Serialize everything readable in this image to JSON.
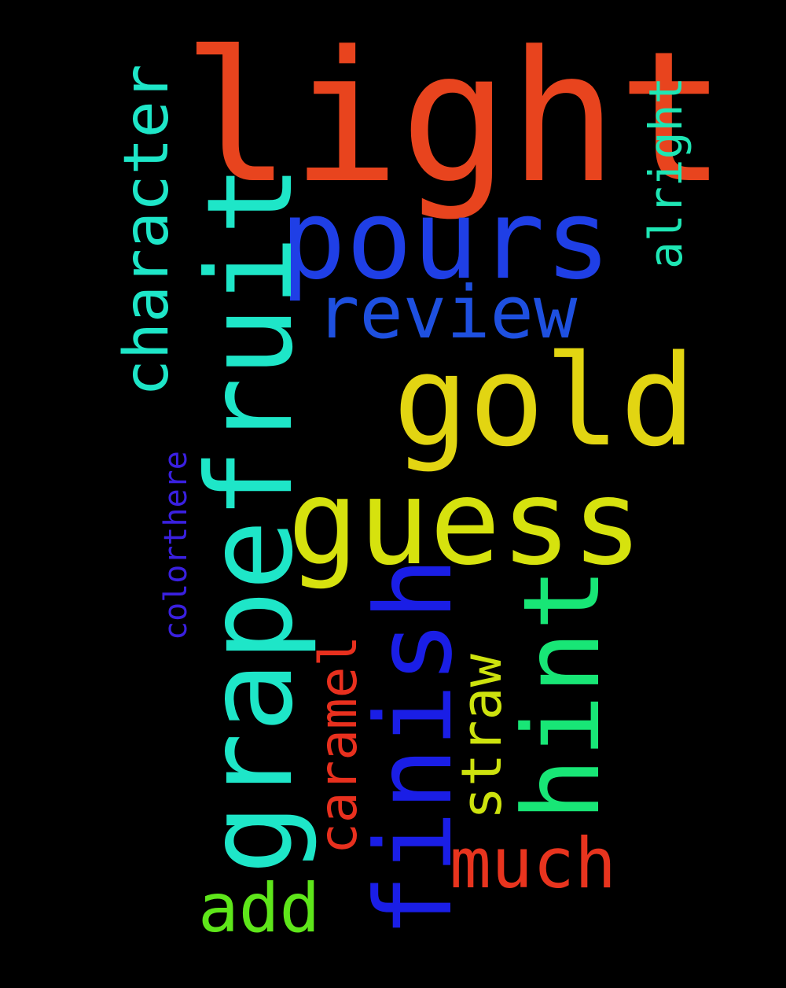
{
  "background": "#000000",
  "words": [
    {
      "text": "light",
      "color": "#e8441e"
    },
    {
      "text": "pours",
      "color": "#1f3fe6"
    },
    {
      "text": "review",
      "color": "#1e50e0"
    },
    {
      "text": "gold",
      "color": "#e2d512"
    },
    {
      "text": "guess",
      "color": "#d6e20e"
    },
    {
      "text": "fruit",
      "color": "#1ee6c8"
    },
    {
      "text": "grapefruit",
      "color": "#1ee6c8"
    },
    {
      "text": "character",
      "color": "#1ee6c8"
    },
    {
      "text": "alright",
      "color": "#1ee6b4"
    },
    {
      "text": "colorthere",
      "color": "#3a20e0"
    },
    {
      "text": "finish",
      "color": "#1a1ee6"
    },
    {
      "text": "hint",
      "color": "#18e676"
    },
    {
      "text": "caramel",
      "color": "#e8301e"
    },
    {
      "text": "straw",
      "color": "#cde20e"
    },
    {
      "text": "much",
      "color": "#e8341e"
    },
    {
      "text": "add",
      "color": "#5ee61a"
    }
  ]
}
